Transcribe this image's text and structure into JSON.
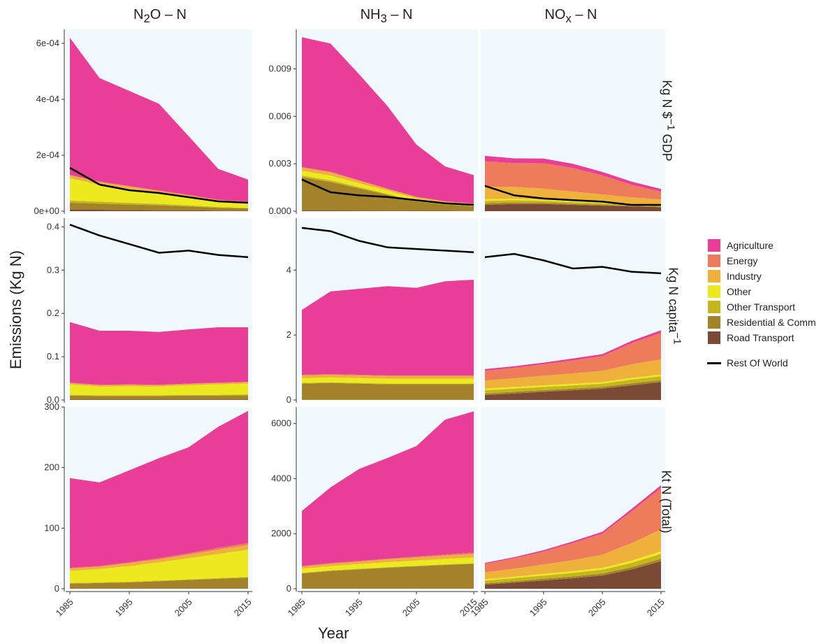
{
  "facet_titles": {
    "cols": [
      {
        "base": "N",
        "sub": "2",
        "rest": "O – N"
      },
      {
        "base": "NH",
        "sub": "3",
        "rest": " – N"
      },
      {
        "base": "NO",
        "sub": "x",
        "rest": " – N"
      }
    ],
    "rows": [
      {
        "text": "Kg N $",
        "sup": "−1",
        "rest": " GDP"
      },
      {
        "text": "Kg N capita",
        "sup": "−1",
        "rest": ""
      },
      {
        "text": "Kt N (Total)",
        "sup": "",
        "rest": ""
      }
    ]
  },
  "axis": {
    "xlabel": "Year",
    "ylabel": "Emissions (Kg N)"
  },
  "colors": {
    "Agriculture": "#e83e98",
    "Energy": "#ee7b5c",
    "Industry": "#eeb13b",
    "Other": "#ece91f",
    "Other Transport": "#c4b61c",
    "Residential & Comm": "#a3822a",
    "Road Transport": "#7a4a37",
    "Rest Of World": "#000000",
    "panel_bg": "#f0f8fb"
  },
  "legend": {
    "entries": [
      "Agriculture",
      "Energy",
      "Industry",
      "Other",
      "Other Transport",
      "Residential & Comm",
      "Road Transport"
    ],
    "line_entry": "Rest Of World"
  },
  "chart_data": {
    "type": "area",
    "x": [
      1985,
      1990,
      1995,
      2000,
      2005,
      2010,
      2015
    ],
    "x_ticks": [
      "1985",
      "1995",
      "2005",
      "2015"
    ],
    "stack_order": [
      "Road Transport",
      "Residential & Comm",
      "Other Transport",
      "Other",
      "Industry",
      "Energy",
      "Agriculture"
    ],
    "panels": [
      {
        "row": 0,
        "col": 0,
        "ylim": [
          0,
          0.00065
        ],
        "ticks": [
          0,
          0.0002,
          0.0004,
          0.0006
        ],
        "tick_labels": [
          "0e+00",
          "2e-04",
          "4e-04",
          "6e-04"
        ],
        "series": {
          "Road Transport": [
            5e-06,
            5e-06,
            4e-06,
            3e-06,
            3e-06,
            2e-06,
            2e-06
          ],
          "Residential & Comm": [
            2.5e-05,
            2.2e-05,
            2e-05,
            1.8e-05,
            1.4e-05,
            1e-05,
            8e-06
          ],
          "Other Transport": [
            8e-06,
            7e-06,
            6e-06,
            5e-06,
            4e-06,
            3e-06,
            2e-06
          ],
          "Other": [
            8e-05,
            6e-05,
            5e-05,
            4e-05,
            3e-05,
            2e-05,
            1.5e-05
          ],
          "Industry": [
            1e-05,
            1e-05,
            8e-06,
            6e-06,
            5e-06,
            4e-06,
            4e-06
          ],
          "Energy": [
            2e-06,
            2e-06,
            2e-06,
            2e-06,
            2e-06,
            2e-06,
            2e-06
          ],
          "Agriculture": [
            0.00049,
            0.00037,
            0.00034,
            0.00031,
            0.00021,
            0.00011,
            8e-05
          ]
        },
        "rest_of_world": [
          0.000155,
          9.5e-05,
          7.5e-05,
          6.5e-05,
          5e-05,
          3.5e-05,
          3e-05
        ]
      },
      {
        "row": 0,
        "col": 1,
        "ylim": [
          0,
          0.0115
        ],
        "ticks": [
          0,
          0.003,
          0.006,
          0.009
        ],
        "tick_labels": [
          "0.000",
          "0.003",
          "0.006",
          "0.009"
        ],
        "series": {
          "Road Transport": [
            5e-05,
            5e-05,
            4e-05,
            3e-05,
            2e-05,
            2e-05,
            1e-05
          ],
          "Residential & Comm": [
            0.0021,
            0.0018,
            0.0014,
            0.001,
            0.0006,
            0.0004,
            0.0003
          ],
          "Other Transport": [
            0.0001,
            0.0001,
            8e-05,
            6e-05,
            4e-05,
            3e-05,
            2e-05
          ],
          "Other": [
            0.0003,
            0.0003,
            0.00025,
            0.0002,
            0.00015,
            0.0001,
            8e-05
          ],
          "Industry": [
            0.0002,
            0.0002,
            0.00015,
            0.0001,
            8e-05,
            6e-05,
            5e-05
          ],
          "Energy": [
            5e-05,
            5e-05,
            4e-05,
            3e-05,
            2e-05,
            2e-05,
            2e-05
          ],
          "Agriculture": [
            0.0082,
            0.0081,
            0.0067,
            0.0052,
            0.0033,
            0.0022,
            0.0018
          ]
        },
        "rest_of_world": [
          0.002,
          0.0012,
          0.001,
          0.0009,
          0.0007,
          0.0005,
          0.0004
        ]
      },
      {
        "row": 0,
        "col": 2,
        "ylim": [
          0,
          0.0115
        ],
        "ticks": [],
        "tick_labels": [],
        "series": {
          "Road Transport": [
            0.0004,
            0.00045,
            0.00045,
            0.0004,
            0.00035,
            0.0003,
            0.00025
          ],
          "Residential & Comm": [
            0.0001,
            0.0001,
            8e-05,
            7e-05,
            6e-05,
            5e-05,
            4e-05
          ],
          "Other Transport": [
            0.00015,
            0.00014,
            0.00012,
            0.0001,
            9e-05,
            7e-05,
            6e-05
          ],
          "Other": [
            0.0001,
            0.0001,
            8e-05,
            7e-05,
            6e-05,
            5e-05,
            4e-05
          ],
          "Industry": [
            0.0008,
            0.00075,
            0.0007,
            0.0006,
            0.0005,
            0.0004,
            0.00035
          ],
          "Energy": [
            0.0016,
            0.0015,
            0.0016,
            0.0015,
            0.0012,
            0.0008,
            0.0005
          ],
          "Agriculture": [
            0.00035,
            0.0003,
            0.0003,
            0.00026,
            0.00022,
            0.0002,
            0.00016
          ]
        },
        "rest_of_world": [
          0.0016,
          0.001,
          0.0008,
          0.0007,
          0.0006,
          0.0004,
          0.0004
        ]
      },
      {
        "row": 1,
        "col": 0,
        "ylim": [
          0,
          0.42
        ],
        "ticks": [
          0,
          0.1,
          0.2,
          0.3,
          0.4
        ],
        "tick_labels": [
          "0.0",
          "0.1",
          "0.2",
          "0.3",
          "0.4"
        ],
        "series": {
          "Road Transport": [
            0.001,
            0.001,
            0.001,
            0.001,
            0.001,
            0.001,
            0.001
          ],
          "Residential & Comm": [
            0.009,
            0.008,
            0.008,
            0.008,
            0.009,
            0.009,
            0.01
          ],
          "Other Transport": [
            0.002,
            0.002,
            0.002,
            0.002,
            0.002,
            0.002,
            0.002
          ],
          "Other": [
            0.024,
            0.02,
            0.021,
            0.02,
            0.022,
            0.024,
            0.025
          ],
          "Industry": [
            0.003,
            0.003,
            0.003,
            0.003,
            0.003,
            0.003,
            0.003
          ],
          "Energy": [
            0.001,
            0.001,
            0.001,
            0.001,
            0.001,
            0.001,
            0.001
          ],
          "Agriculture": [
            0.14,
            0.125,
            0.124,
            0.122,
            0.125,
            0.128,
            0.126
          ]
        },
        "rest_of_world": [
          0.405,
          0.38,
          0.36,
          0.34,
          0.345,
          0.335,
          0.33
        ]
      },
      {
        "row": 1,
        "col": 1,
        "ylim": [
          0,
          5.6
        ],
        "ticks": [
          0,
          2,
          4
        ],
        "tick_labels": [
          "0",
          "2",
          "4"
        ],
        "series": {
          "Road Transport": [
            0.005,
            0.005,
            0.005,
            0.005,
            0.005,
            0.005,
            0.005
          ],
          "Residential & Comm": [
            0.5,
            0.52,
            0.5,
            0.48,
            0.48,
            0.48,
            0.48
          ],
          "Other Transport": [
            0.02,
            0.02,
            0.02,
            0.02,
            0.02,
            0.02,
            0.02
          ],
          "Other": [
            0.15,
            0.15,
            0.15,
            0.15,
            0.15,
            0.15,
            0.15
          ],
          "Industry": [
            0.08,
            0.08,
            0.08,
            0.08,
            0.08,
            0.08,
            0.08
          ],
          "Energy": [
            0.02,
            0.02,
            0.02,
            0.02,
            0.02,
            0.02,
            0.02
          ],
          "Agriculture": [
            2.0,
            2.55,
            2.65,
            2.75,
            2.7,
            2.9,
            2.95
          ]
        },
        "rest_of_world": [
          5.3,
          5.2,
          4.9,
          4.7,
          4.65,
          4.6,
          4.55
        ]
      },
      {
        "row": 1,
        "col": 2,
        "ylim": [
          0,
          5.6
        ],
        "ticks": [],
        "tick_labels": [],
        "series": {
          "Road Transport": [
            0.15,
            0.2,
            0.25,
            0.3,
            0.35,
            0.45,
            0.55
          ],
          "Residential & Comm": [
            0.05,
            0.05,
            0.05,
            0.05,
            0.05,
            0.06,
            0.06
          ],
          "Other Transport": [
            0.1,
            0.1,
            0.1,
            0.1,
            0.1,
            0.12,
            0.12
          ],
          "Other": [
            0.05,
            0.05,
            0.05,
            0.05,
            0.05,
            0.05,
            0.05
          ],
          "Industry": [
            0.25,
            0.27,
            0.3,
            0.32,
            0.35,
            0.42,
            0.47
          ],
          "Energy": [
            0.3,
            0.32,
            0.35,
            0.4,
            0.45,
            0.65,
            0.82
          ],
          "Agriculture": [
            0.05,
            0.05,
            0.05,
            0.06,
            0.06,
            0.07,
            0.08
          ]
        },
        "rest_of_world": [
          4.4,
          4.5,
          4.3,
          4.05,
          4.1,
          3.95,
          3.9
        ]
      },
      {
        "row": 2,
        "col": 0,
        "ylim": [
          0,
          300
        ],
        "ticks": [
          0,
          100,
          200,
          300
        ],
        "tick_labels": [
          "0",
          "100",
          "200",
          "300"
        ],
        "series": {
          "Road Transport": [
            0.5,
            0.5,
            0.5,
            0.5,
            0.5,
            0.5,
            0.5
          ],
          "Residential & Comm": [
            8,
            9,
            10,
            12,
            14,
            16,
            18
          ],
          "Other Transport": [
            1,
            1,
            1,
            1,
            1,
            1,
            1
          ],
          "Other": [
            20,
            22,
            26,
            30,
            35,
            40,
            45
          ],
          "Industry": [
            4,
            4,
            5,
            5,
            6,
            7,
            8
          ],
          "Energy": [
            1,
            1,
            1,
            2,
            2,
            3,
            3
          ],
          "Agriculture": [
            148,
            138,
            152,
            165,
            175,
            200,
            218
          ]
        },
        "rest_of_world": []
      },
      {
        "row": 2,
        "col": 1,
        "ylim": [
          0,
          6600
        ],
        "ticks": [
          0,
          2000,
          4000,
          6000
        ],
        "tick_labels": [
          "0",
          "2000",
          "4000",
          "6000"
        ],
        "series": {
          "Road Transport": [
            5,
            5,
            5,
            5,
            5,
            5,
            5
          ],
          "Residential & Comm": [
            550,
            640,
            700,
            760,
            810,
            860,
            900
          ],
          "Other Transport": [
            20,
            20,
            20,
            20,
            20,
            20,
            20
          ],
          "Other": [
            150,
            160,
            170,
            180,
            190,
            200,
            210
          ],
          "Industry": [
            80,
            85,
            90,
            100,
            110,
            120,
            130
          ],
          "Energy": [
            20,
            20,
            25,
            30,
            35,
            40,
            45
          ],
          "Agriculture": [
            2000,
            2750,
            3340,
            3660,
            4010,
            4895,
            5130
          ]
        },
        "rest_of_world": []
      },
      {
        "row": 2,
        "col": 2,
        "ylim": [
          0,
          6600
        ],
        "ticks": [],
        "tick_labels": [],
        "series": {
          "Road Transport": [
            150,
            220,
            300,
            380,
            480,
            700,
            1000
          ],
          "Residential & Comm": [
            50,
            55,
            60,
            65,
            70,
            80,
            90
          ],
          "Other Transport": [
            100,
            110,
            120,
            130,
            140,
            160,
            180
          ],
          "Other": [
            50,
            55,
            60,
            65,
            70,
            80,
            90
          ],
          "Industry": [
            250,
            290,
            340,
            400,
            480,
            640,
            800
          ],
          "Energy": [
            300,
            380,
            470,
            620,
            760,
            1150,
            1500
          ],
          "Agriculture": [
            40,
            40,
            50,
            60,
            70,
            90,
            100
          ]
        },
        "rest_of_world": []
      }
    ]
  }
}
